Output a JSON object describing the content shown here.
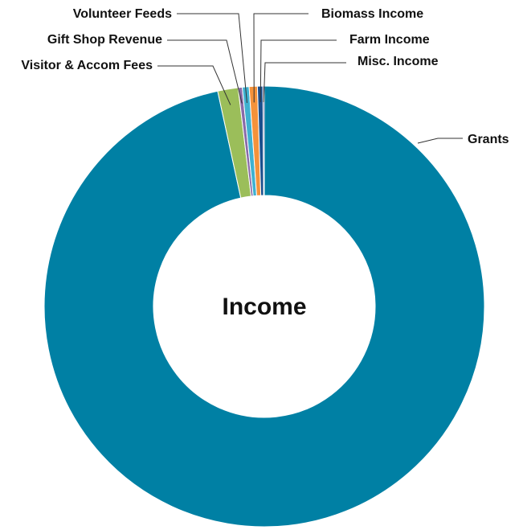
{
  "chart_data": {
    "type": "pie",
    "donut": true,
    "center_title": "Income",
    "slices": [
      {
        "label": "Grants",
        "value": 96.6,
        "color": "#0080A4"
      },
      {
        "label": "Visitor & Accom Fees",
        "value": 1.5,
        "color": "#9BBE5A"
      },
      {
        "label": "Gift Shop Revenue",
        "value": 0.3,
        "color": "#8A6AA8"
      },
      {
        "label": "Volunteer Feeds",
        "value": 0.5,
        "color": "#3FB1D0"
      },
      {
        "label": "Biomass Income",
        "value": 0.6,
        "color": "#F5923A"
      },
      {
        "label": "Farm Income",
        "value": 0.4,
        "color": "#1B4F8C"
      },
      {
        "label": "Misc. Income",
        "value": 0.1,
        "color": "#2B2B7A"
      }
    ]
  }
}
